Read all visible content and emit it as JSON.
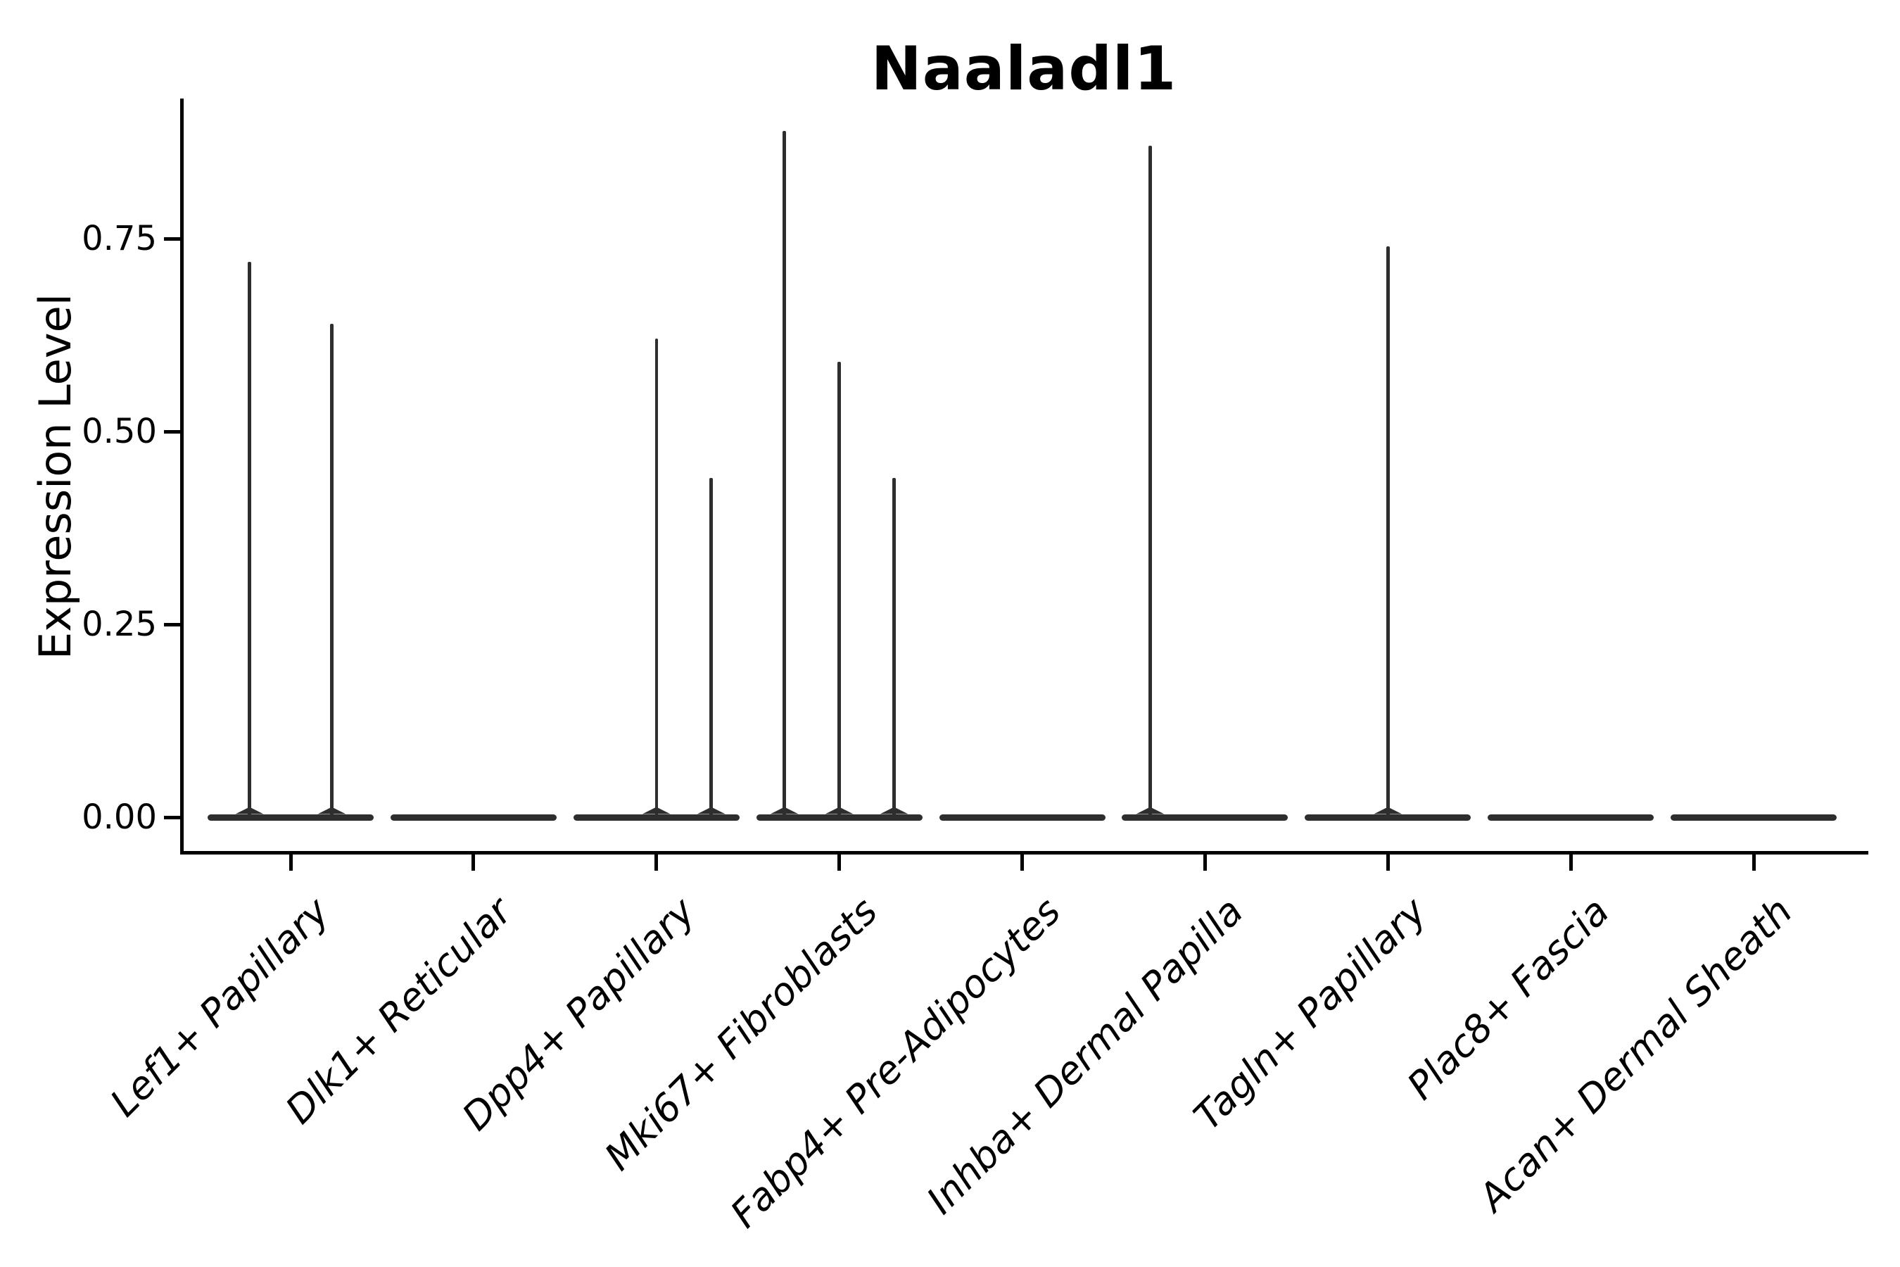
{
  "chart_data": {
    "type": "violin",
    "title": "Naaladl1",
    "ylabel": "Expression Level",
    "xlabel": "",
    "grid": false,
    "legend": null,
    "background": "#ffffff",
    "baseline_value": 0,
    "ytick_labels": [
      "0.00",
      "0.25",
      "0.50",
      "0.75"
    ],
    "ytick_values": [
      0,
      0.25,
      0.5,
      0.75
    ],
    "ylim": [
      -0.045,
      0.93
    ],
    "categories": [
      "Lef1+ Papillary",
      "Dlk1+ Reticular",
      "Dpp4+ Papillary",
      "Mki67+ Fibroblasts",
      "Fabp4+ Pre-Adipocytes",
      "Inhba+ Dermal Papilla",
      "Tagln+ Papillary",
      "Plac8+ Fascia",
      "Acan+ Dermal Sheath"
    ],
    "violins": [
      {
        "category": "Lef1+ Papillary",
        "spikes": [
          {
            "offset": -0.225,
            "max": 0.72
          },
          {
            "offset": 0.225,
            "max": 0.64
          }
        ]
      },
      {
        "category": "Dlk1+ Reticular",
        "spikes": []
      },
      {
        "category": "Dpp4+ Papillary",
        "spikes": [
          {
            "offset": 0,
            "max": 0.62
          },
          {
            "offset": 0.3,
            "max": 0.44
          }
        ]
      },
      {
        "category": "Mki67+ Fibroblasts",
        "spikes": [
          {
            "offset": -0.3,
            "max": 0.89
          },
          {
            "offset": 0,
            "max": 0.59
          },
          {
            "offset": 0.3,
            "max": 0.44
          }
        ]
      },
      {
        "category": "Fabp4+ Pre-Adipocytes",
        "spikes": []
      },
      {
        "category": "Inhba+ Dermal Papilla",
        "spikes": [
          {
            "offset": -0.3,
            "max": 0.87
          }
        ]
      },
      {
        "category": "Tagln+ Papillary",
        "spikes": [
          {
            "offset": 0,
            "max": 0.74
          }
        ]
      },
      {
        "category": "Plac8+ Fascia",
        "spikes": []
      },
      {
        "category": "Acan+ Dermal Sheath",
        "spikes": []
      }
    ],
    "colors": {
      "violin_stroke": "#2e2e2e",
      "axis": "#000000",
      "text": "#000000",
      "background": "#ffffff"
    }
  }
}
